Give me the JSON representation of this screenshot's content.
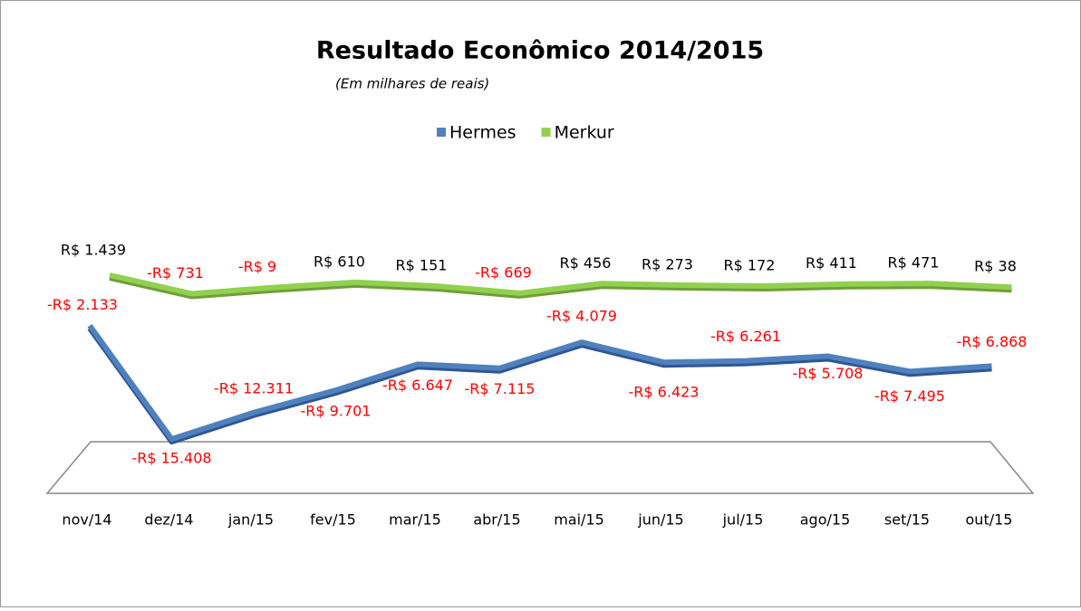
{
  "chart_data": {
    "type": "line",
    "title": "Resultado Econômico 2014/2015",
    "subtitle": "(Em milhares de reais)",
    "categories": [
      "nov/14",
      "dez/14",
      "jan/15",
      "fev/15",
      "mar/15",
      "abr/15",
      "mai/15",
      "jun/15",
      "jul/15",
      "ago/15",
      "set/15",
      "out/15"
    ],
    "series": [
      {
        "name": "Hermes",
        "color": "#4f81bd",
        "values": [
          -2133,
          -15408,
          -12311,
          -9701,
          -6647,
          -7115,
          -4079,
          -6423,
          -6261,
          -5708,
          -7495,
          -6868
        ],
        "value_labels": [
          "-R$ 2.133",
          "-R$ 15.408",
          "-R$ 12.311",
          "-R$ 9.701",
          "-R$ 6.647",
          "-R$ 7.115",
          "-R$ 4.079",
          "-R$ 6.423",
          "-R$ 6.261",
          "-R$ 5.708",
          "-R$ 7.495",
          "-R$ 6.868"
        ]
      },
      {
        "name": "Merkur",
        "color": "#92d050",
        "values": [
          1439,
          -731,
          -9,
          610,
          151,
          -669,
          456,
          273,
          172,
          411,
          471,
          38
        ],
        "value_labels": [
          "R$ 1.439",
          "-R$ 731",
          "-R$ 9",
          "R$ 610",
          "R$ 151",
          "-R$ 669",
          "R$ 456",
          "R$ 273",
          "R$ 172",
          "R$ 411",
          "R$ 471",
          "R$ 38"
        ]
      }
    ],
    "legend": "top"
  }
}
